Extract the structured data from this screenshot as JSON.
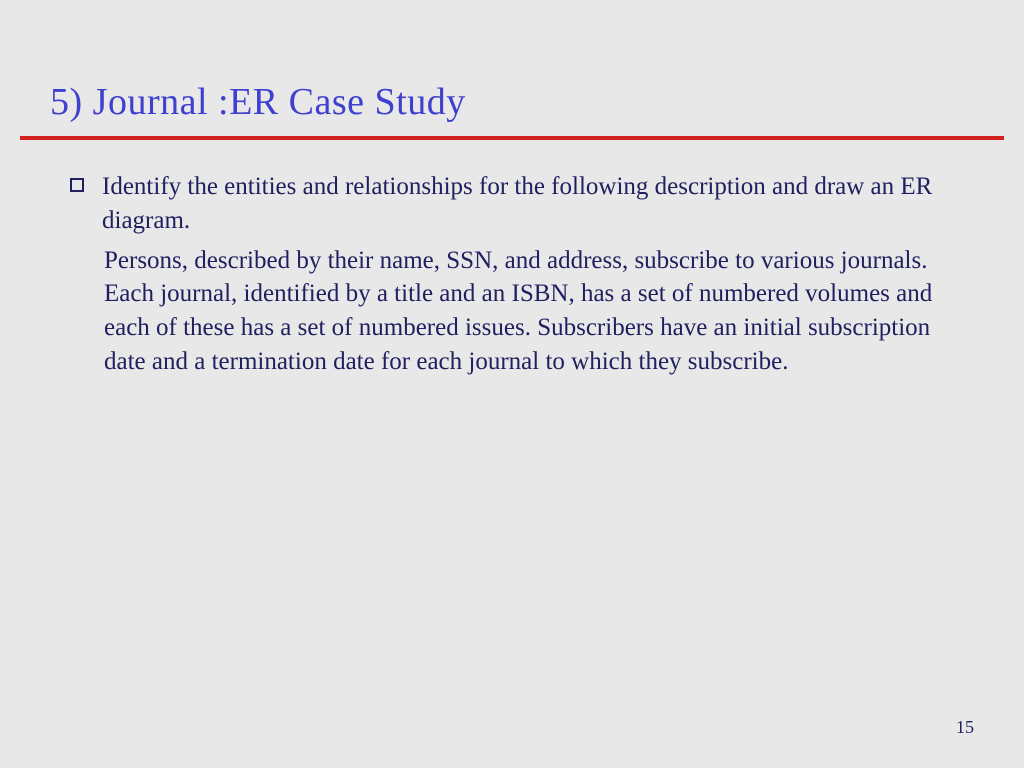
{
  "slide": {
    "title": "5) Journal :ER Case Study",
    "bullet_intro": " Identify the entities and relationships for the following description and draw an ER diagram.",
    "body_text": "Persons, described by their name, SSN, and address, subscribe to various journals. Each journal, identified by a title and an ISBN, has a set of numbered volumes and each of these has a set of numbered issues. Subscribers have an initial subscription date and a termination date for each journal to which they subscribe.",
    "page_number": "15"
  },
  "styling": {
    "background_color": "#e8e8e8",
    "title_color": "#4040d0",
    "title_fontsize": 38,
    "divider_color": "#d02020",
    "divider_thickness": 4,
    "body_text_color": "#202060",
    "body_fontsize": 25,
    "page_number_color": "#202060",
    "page_number_fontsize": 18,
    "font_family": "Times New Roman"
  }
}
